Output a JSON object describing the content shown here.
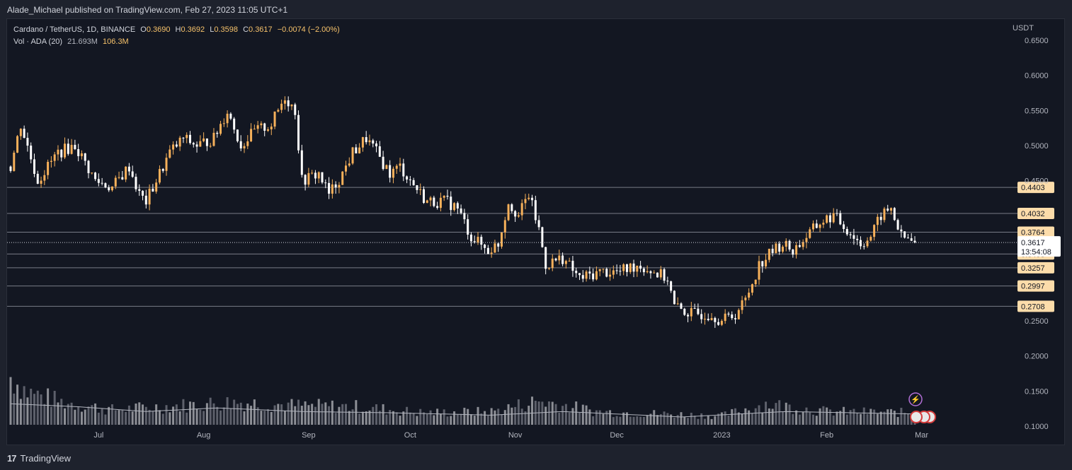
{
  "header": {
    "publisher": "Alade_Michael published on TradingView.com, Feb 27, 2023 11:05 UTC+1"
  },
  "footer": {
    "brand": "TradingView"
  },
  "legend": {
    "symbol": "Cardano / TetherUS, 1D, BINANCE",
    "open_label": "O",
    "open": "0.3690",
    "high_label": "H",
    "high": "0.3692",
    "low_label": "L",
    "low": "0.3598",
    "close_label": "C",
    "close": "0.3617",
    "change": "−0.0074 (−2.00%)",
    "vol_label": "Vol · ADA (20)",
    "vol_ma": "21.693M",
    "vol": "106.3M"
  },
  "price_axis": {
    "currency": "USDT"
  },
  "current_price": {
    "price": "0.3617",
    "countdown": "13:54:08"
  },
  "colors": {
    "up": "#f6b05a",
    "down": "#ffffff",
    "background": "#131722",
    "grid": "#2a2e39",
    "level_label_bg": "#fcdcaa",
    "ma_line": "#b2b5be"
  },
  "chart_data": {
    "type": "candlestick",
    "xlabel": "",
    "ylabel": "",
    "x_tick_labels": [
      "Jul",
      "Aug",
      "Sep",
      "Oct",
      "Nov",
      "Dec",
      "2023",
      "Feb",
      "Mar"
    ],
    "y_tick_values": [
      0.65,
      0.6,
      0.55,
      0.5,
      0.45,
      0.25,
      0.2,
      0.15,
      0.1
    ],
    "y_tick_labels": [
      "0.6500",
      "0.6000",
      "0.5500",
      "0.5000",
      "0.4500",
      "0.2500",
      "0.2000",
      "0.1500",
      "0.1000"
    ],
    "ylim": [
      0.075,
      0.66
    ],
    "date_range": [
      "2022-06-05",
      "2023-02-27"
    ],
    "horizontal_levels": [
      0.4403,
      0.4032,
      0.3764,
      0.3453,
      0.3257,
      0.2997,
      0.2708
    ],
    "horizontal_level_labels": [
      "0.4403",
      "0.4032",
      "0.3764",
      "0.3453",
      "0.3257",
      "0.2997",
      "0.2708"
    ],
    "price_path": [
      [
        "2022-06-05",
        0.47
      ],
      [
        "2022-06-08",
        0.53
      ],
      [
        "2022-06-13",
        0.45
      ],
      [
        "2022-06-19",
        0.49
      ],
      [
        "2022-06-24",
        0.5
      ],
      [
        "2022-06-30",
        0.45
      ],
      [
        "2022-07-05",
        0.44
      ],
      [
        "2022-07-10",
        0.47
      ],
      [
        "2022-07-13",
        0.43
      ],
      [
        "2022-07-15",
        0.42
      ],
      [
        "2022-07-19",
        0.46
      ],
      [
        "2022-07-22",
        0.49
      ],
      [
        "2022-07-26",
        0.51
      ],
      [
        "2022-07-30",
        0.5
      ],
      [
        "2022-08-04",
        0.51
      ],
      [
        "2022-08-08",
        0.55
      ],
      [
        "2022-08-12",
        0.5
      ],
      [
        "2022-08-16",
        0.52
      ],
      [
        "2022-08-21",
        0.53
      ],
      [
        "2022-08-25",
        0.57
      ],
      [
        "2022-08-28",
        0.55
      ],
      [
        "2022-08-30",
        0.45
      ],
      [
        "2022-09-04",
        0.46
      ],
      [
        "2022-09-07",
        0.43
      ],
      [
        "2022-09-11",
        0.46
      ],
      [
        "2022-09-14",
        0.49
      ],
      [
        "2022-09-18",
        0.51
      ],
      [
        "2022-09-21",
        0.49
      ],
      [
        "2022-09-25",
        0.46
      ],
      [
        "2022-09-28",
        0.47
      ],
      [
        "2022-10-01",
        0.45
      ],
      [
        "2022-10-06",
        0.42
      ],
      [
        "2022-10-12",
        0.42
      ],
      [
        "2022-10-15",
        0.41
      ],
      [
        "2022-10-19",
        0.37
      ],
      [
        "2022-10-24",
        0.35
      ],
      [
        "2022-10-27",
        0.36
      ],
      [
        "2022-10-30",
        0.42
      ],
      [
        "2022-11-02",
        0.4
      ],
      [
        "2022-11-05",
        0.43
      ],
      [
        "2022-11-08",
        0.38
      ],
      [
        "2022-11-10",
        0.33
      ],
      [
        "2022-11-15",
        0.34
      ],
      [
        "2022-11-20",
        0.31
      ],
      [
        "2022-11-26",
        0.32
      ],
      [
        "2022-12-02",
        0.32
      ],
      [
        "2022-12-07",
        0.33
      ],
      [
        "2022-12-12",
        0.32
      ],
      [
        "2022-12-16",
        0.31
      ],
      [
        "2022-12-18",
        0.27
      ],
      [
        "2022-12-23",
        0.26
      ],
      [
        "2022-12-29",
        0.26
      ],
      [
        "2023-01-01",
        0.25
      ],
      [
        "2023-01-05",
        0.26
      ],
      [
        "2023-01-08",
        0.28
      ],
      [
        "2023-01-12",
        0.33
      ],
      [
        "2023-01-16",
        0.35
      ],
      [
        "2023-01-19",
        0.36
      ],
      [
        "2023-01-22",
        0.35
      ],
      [
        "2023-01-26",
        0.37
      ],
      [
        "2023-01-30",
        0.39
      ],
      [
        "2023-02-03",
        0.4
      ],
      [
        "2023-02-07",
        0.38
      ],
      [
        "2023-02-11",
        0.36
      ],
      [
        "2023-02-14",
        0.37
      ],
      [
        "2023-02-17",
        0.4
      ],
      [
        "2023-02-20",
        0.41
      ],
      [
        "2023-02-23",
        0.37
      ],
      [
        "2023-02-27",
        0.3617
      ]
    ],
    "volume_path": [
      [
        "2022-06-05",
        0.8
      ],
      [
        "2022-06-10",
        0.55
      ],
      [
        "2022-06-20",
        0.38
      ],
      [
        "2022-07-05",
        0.25
      ],
      [
        "2022-07-25",
        0.32
      ],
      [
        "2022-08-10",
        0.38
      ],
      [
        "2022-08-28",
        0.32
      ],
      [
        "2022-09-15",
        0.3
      ],
      [
        "2022-10-05",
        0.2
      ],
      [
        "2022-10-25",
        0.22
      ],
      [
        "2022-11-08",
        0.4
      ],
      [
        "2022-11-25",
        0.22
      ],
      [
        "2022-12-15",
        0.18
      ],
      [
        "2023-01-01",
        0.15
      ],
      [
        "2023-01-14",
        0.35
      ],
      [
        "2023-02-01",
        0.22
      ],
      [
        "2023-02-27",
        0.2
      ]
    ],
    "volume_ma_path": [
      [
        "2022-06-05",
        0.35
      ],
      [
        "2022-06-25",
        0.3
      ],
      [
        "2022-07-15",
        0.22
      ],
      [
        "2022-08-05",
        0.28
      ],
      [
        "2022-08-30",
        0.22
      ],
      [
        "2022-09-25",
        0.2
      ],
      [
        "2022-10-25",
        0.16
      ],
      [
        "2022-11-15",
        0.22
      ],
      [
        "2022-12-20",
        0.13
      ],
      [
        "2023-01-20",
        0.22
      ],
      [
        "2023-02-27",
        0.18
      ]
    ]
  }
}
